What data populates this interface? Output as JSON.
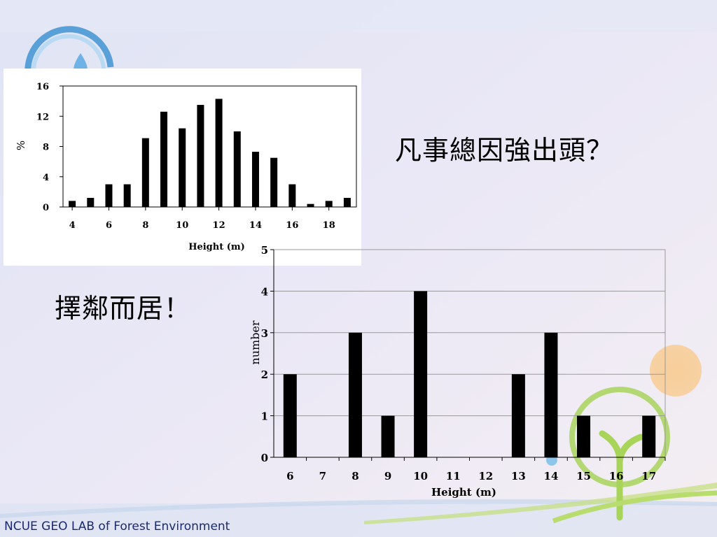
{
  "slide": {
    "caption_top": "凡事總因強出頭？",
    "caption_left": "擇鄰而居！",
    "footer": "NCUE GEO LAB of Forest Environment"
  },
  "colors": {
    "bar": "#000000",
    "axis": "#000000",
    "grid": "#9a9a9a",
    "background_top": "#dde3f4",
    "background_bottom": "#f1eff6",
    "logo_blue": "#5aa0d8",
    "logo_green": "#9ccc3c",
    "logo_orange": "#f6c98a",
    "footer_text": "#1a2a6e"
  },
  "icons": [
    "water-drop-logo-icon",
    "sprout-logo-icon",
    "orange-circle-decoration"
  ],
  "chart_data": [
    {
      "type": "bar",
      "title": "",
      "xlabel": "Height (m)",
      "ylabel": "%",
      "x": [
        4,
        5,
        6,
        7,
        8,
        9,
        10,
        11,
        12,
        13,
        14,
        15,
        16,
        17,
        18,
        19
      ],
      "values": [
        0.8,
        1.2,
        3.0,
        3.0,
        9.1,
        12.6,
        10.4,
        13.5,
        14.3,
        10.0,
        7.3,
        6.5,
        3.0,
        0.4,
        0.8,
        1.2
      ],
      "xticks": [
        4,
        6,
        8,
        10,
        12,
        14,
        16,
        18
      ],
      "yticks": [
        0,
        4,
        8,
        12,
        16
      ],
      "xlim": [
        3.5,
        19.5
      ],
      "ylim": [
        0,
        16
      ],
      "grid": false,
      "legend": "none"
    },
    {
      "type": "bar",
      "title": "",
      "xlabel": "Height (m)",
      "ylabel": "number",
      "categories": [
        "6",
        "7",
        "8",
        "9",
        "10",
        "11",
        "12",
        "13",
        "14",
        "15",
        "16",
        "17"
      ],
      "values": [
        2,
        0,
        3,
        1,
        4,
        0,
        0,
        2,
        3,
        1,
        0,
        1
      ],
      "yticks": [
        0,
        1,
        2,
        3,
        4,
        5
      ],
      "ylim": [
        0,
        5
      ],
      "grid": true,
      "legend": "none"
    }
  ]
}
